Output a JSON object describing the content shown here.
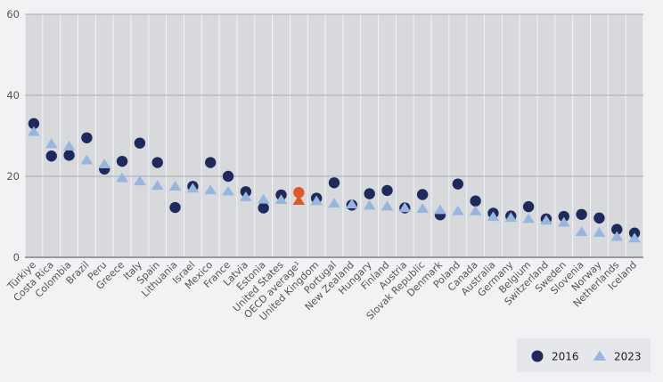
{
  "chart_data": {
    "type": "scatter",
    "title": "",
    "xlabel": "",
    "ylabel": "",
    "ylim": [
      0,
      60
    ],
    "yticks": [
      0,
      20,
      40,
      60
    ],
    "grid": true,
    "legend_position": "bottom-right",
    "categories": [
      "Türkiye",
      "Costa Rica",
      "Colombia",
      "Brazil",
      "Peru",
      "Greece",
      "Italy",
      "Spain",
      "Lithuania",
      "Israel",
      "Mexico",
      "France",
      "Latvia",
      "Estonia",
      "United States",
      "OECD average¹",
      "United Kingdom",
      "Portugal",
      "New Zealand",
      "Hungary",
      "Finland",
      "Austria",
      "Slovak Republic",
      "Denmark",
      "Poland",
      "Canada",
      "Australia",
      "Germany",
      "Belgium",
      "Switzerland",
      "Sweden",
      "Slovenia",
      "Norway",
      "Netherlands",
      "Iceland"
    ],
    "highlight_category": "OECD average¹",
    "series": [
      {
        "name": "2016",
        "marker": "circle",
        "color": "#1f2a5c",
        "highlight_color": "#e0582a",
        "values": [
          33.0,
          25.0,
          25.2,
          29.5,
          21.8,
          23.7,
          28.2,
          23.4,
          12.3,
          17.5,
          23.4,
          20.0,
          16.2,
          12.2,
          15.4,
          16.0,
          14.6,
          18.4,
          12.9,
          15.7,
          16.5,
          12.2,
          15.5,
          10.5,
          18.1,
          13.9,
          10.9,
          10.2,
          12.5,
          9.5,
          10.1,
          10.6,
          9.7,
          6.9,
          6.0
        ]
      },
      {
        "name": "2023",
        "marker": "triangle",
        "color": "#97b5de",
        "highlight_color": "#e0582a",
        "values": [
          31.0,
          28.0,
          27.4,
          24.0,
          23.0,
          19.6,
          18.8,
          17.7,
          17.5,
          17.0,
          16.6,
          16.3,
          14.9,
          14.3,
          14.2,
          14.0,
          13.9,
          13.3,
          13.1,
          12.8,
          12.6,
          12.2,
          12.0,
          11.7,
          11.4,
          11.4,
          10.0,
          9.8,
          9.5,
          9.1,
          8.6,
          6.3,
          6.1,
          5.1,
          4.7
        ]
      }
    ]
  }
}
